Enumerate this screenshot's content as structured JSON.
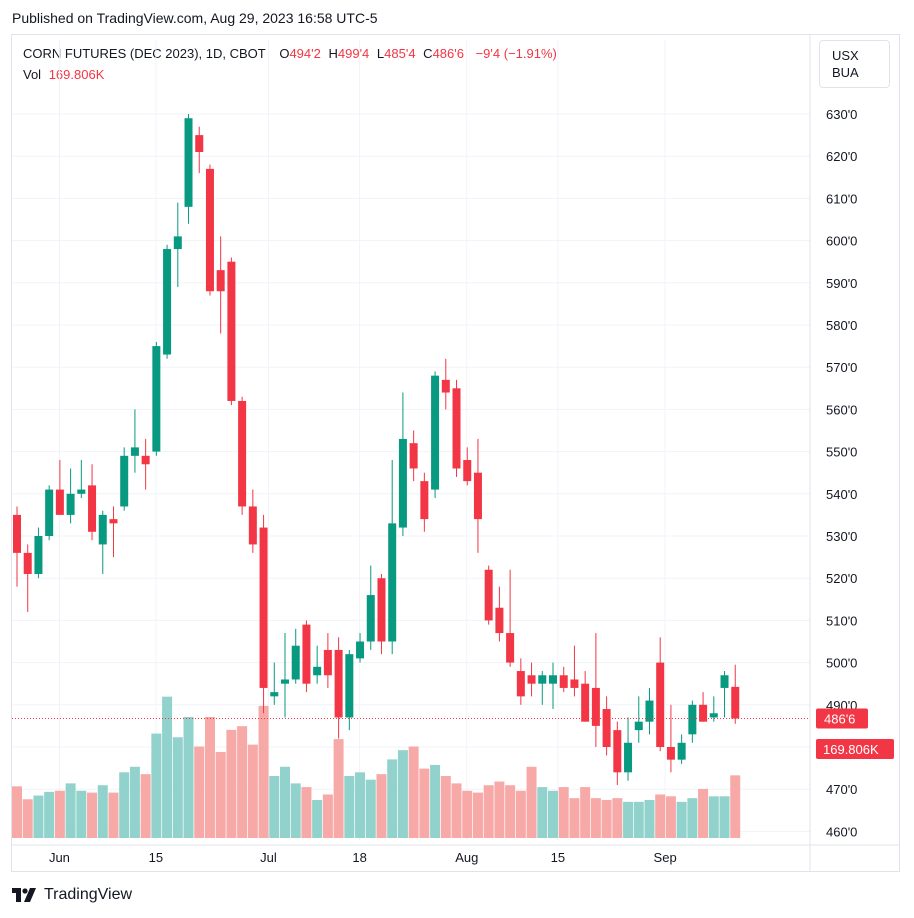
{
  "published": "Published on TradingView.com, Aug 29, 2023 16:58 UTC-5",
  "legend": {
    "symbol": "CORN FUTURES (DEC 2023), 1D, CBOT",
    "open_label": "O",
    "open": "494'2",
    "high_label": "H",
    "high": "499'4",
    "low_label": "L",
    "low": "485'4",
    "close_label": "C",
    "close": "486'6",
    "change": "−9'4 (−1.91%)",
    "vol_label": "Vol",
    "vol": "169.806K"
  },
  "units": [
    "USX",
    "BUA"
  ],
  "footer": "TradingView",
  "colors": {
    "up": "#089981",
    "down": "#f23645",
    "up_vol": "#92d2cc",
    "down_vol": "#f7a9a7",
    "grid": "#f0f3fa"
  },
  "chart_data": {
    "type": "candlestick",
    "title": "CORN FUTURES (DEC 2023), 1D, CBOT",
    "y_ticks": [
      "460'0",
      "470'0",
      "480'0",
      "490'0",
      "500'0",
      "510'0",
      "520'0",
      "530'0",
      "540'0",
      "550'0",
      "560'0",
      "570'0",
      "580'0",
      "590'0",
      "600'0",
      "610'0",
      "620'0",
      "630'0"
    ],
    "y_tick_values": [
      460,
      470,
      480,
      490,
      500,
      510,
      520,
      530,
      540,
      550,
      560,
      570,
      580,
      590,
      600,
      610,
      620,
      630
    ],
    "ylim": [
      456,
      636
    ],
    "x_labels": [
      {
        "label": "Jun",
        "index": 2
      },
      {
        "label": "15",
        "index": 11
      },
      {
        "label": "Jul",
        "index": 21.5
      },
      {
        "label": "18",
        "index": 30
      },
      {
        "label": "Aug",
        "index": 40
      },
      {
        "label": "15",
        "index": 48.5
      },
      {
        "label": "Sep",
        "index": 58.5
      }
    ],
    "last_price_label": "486'6",
    "last_price": 486.75,
    "last_volume_label": "169.806K",
    "last_volume": 169806,
    "volume_max": 420000,
    "candles": [
      {
        "d": "2023-05-31",
        "o": 535,
        "h": 537,
        "l": 518,
        "c": 526,
        "v": 140000
      },
      {
        "d": "2023-06-01",
        "o": 526,
        "h": 528,
        "l": 512,
        "c": 521,
        "v": 105000
      },
      {
        "d": "2023-06-02",
        "o": 521,
        "h": 532,
        "l": 520,
        "c": 530,
        "v": 115000
      },
      {
        "d": "2023-06-05",
        "o": 530,
        "h": 542,
        "l": 529,
        "c": 541,
        "v": 125000
      },
      {
        "d": "2023-06-06",
        "o": 541,
        "h": 548,
        "l": 536,
        "c": 535,
        "v": 128000
      },
      {
        "d": "2023-06-07",
        "o": 535,
        "h": 546,
        "l": 533,
        "c": 540,
        "v": 148000
      },
      {
        "d": "2023-06-08",
        "o": 540,
        "h": 548,
        "l": 539,
        "c": 541,
        "v": 128000
      },
      {
        "d": "2023-06-09",
        "o": 542,
        "h": 547,
        "l": 529,
        "c": 531,
        "v": 123000
      },
      {
        "d": "2023-06-12",
        "o": 528,
        "h": 536,
        "l": 521,
        "c": 535,
        "v": 143000
      },
      {
        "d": "2023-06-13",
        "o": 534,
        "h": 537,
        "l": 525,
        "c": 533,
        "v": 123000
      },
      {
        "d": "2023-06-14",
        "o": 537,
        "h": 551,
        "l": 536,
        "c": 549,
        "v": 178000
      },
      {
        "d": "2023-06-15",
        "o": 549,
        "h": 560,
        "l": 545,
        "c": 551,
        "v": 193000
      },
      {
        "d": "2023-06-16",
        "o": 549,
        "h": 553,
        "l": 541,
        "c": 547,
        "v": 173000
      },
      {
        "d": "2023-06-20",
        "o": 550,
        "h": 576,
        "l": 549,
        "c": 575,
        "v": 283000
      },
      {
        "d": "2023-06-21",
        "o": 573,
        "h": 599,
        "l": 572,
        "c": 598,
        "v": 383000
      },
      {
        "d": "2023-06-22",
        "o": 598,
        "h": 609,
        "l": 589,
        "c": 601,
        "v": 273000
      },
      {
        "d": "2023-06-23",
        "o": 608,
        "h": 630,
        "l": 604,
        "c": 629,
        "v": 328000
      },
      {
        "d": "2023-06-26",
        "o": 625,
        "h": 627,
        "l": 616,
        "c": 621,
        "v": 248000
      },
      {
        "d": "2023-06-27",
        "o": 617,
        "h": 618,
        "l": 587,
        "c": 588,
        "v": 328000
      },
      {
        "d": "2023-06-28",
        "o": 593,
        "h": 601,
        "l": 578,
        "c": 588,
        "v": 233000
      },
      {
        "d": "2023-06-29",
        "o": 595,
        "h": 596,
        "l": 561,
        "c": 562,
        "v": 293000
      },
      {
        "d": "2023-06-30",
        "o": 562,
        "h": 563,
        "l": 535,
        "c": 537,
        "v": 303000
      },
      {
        "d": "2023-07-03",
        "o": 537,
        "h": 541,
        "l": 526,
        "c": 528,
        "v": 253000
      },
      {
        "d": "2023-07-05",
        "o": 532,
        "h": 535,
        "l": 488,
        "c": 494,
        "v": 358000
      },
      {
        "d": "2023-07-06",
        "o": 492,
        "h": 500,
        "l": 490,
        "c": 493,
        "v": 168000
      },
      {
        "d": "2023-07-07",
        "o": 495,
        "h": 507,
        "l": 487,
        "c": 496,
        "v": 193000
      },
      {
        "d": "2023-07-10",
        "o": 496,
        "h": 508,
        "l": 495,
        "c": 504,
        "v": 148000
      },
      {
        "d": "2023-07-11",
        "o": 509,
        "h": 510,
        "l": 493,
        "c": 495,
        "v": 138000
      },
      {
        "d": "2023-07-12",
        "o": 497,
        "h": 504,
        "l": 495,
        "c": 499,
        "v": 103000
      },
      {
        "d": "2023-07-13",
        "o": 503,
        "h": 507,
        "l": 494,
        "c": 497,
        "v": 118000
      },
      {
        "d": "2023-07-14",
        "o": 503,
        "h": 506,
        "l": 482,
        "c": 487,
        "v": 268000
      },
      {
        "d": "2023-07-17",
        "o": 487,
        "h": 503,
        "l": 484,
        "c": 502,
        "v": 168000
      },
      {
        "d": "2023-07-18",
        "o": 501,
        "h": 507,
        "l": 500,
        "c": 505,
        "v": 178000
      },
      {
        "d": "2023-07-19",
        "o": 505,
        "h": 523,
        "l": 503,
        "c": 516,
        "v": 158000
      },
      {
        "d": "2023-07-20",
        "o": 520,
        "h": 521,
        "l": 502,
        "c": 505,
        "v": 173000
      },
      {
        "d": "2023-07-21",
        "o": 505,
        "h": 548,
        "l": 502,
        "c": 533,
        "v": 213000
      },
      {
        "d": "2023-07-24",
        "o": 532,
        "h": 564,
        "l": 530,
        "c": 553,
        "v": 238000
      },
      {
        "d": "2023-07-25",
        "o": 552,
        "h": 555,
        "l": 543,
        "c": 546,
        "v": 248000
      },
      {
        "d": "2023-07-26",
        "o": 543,
        "h": 545,
        "l": 531,
        "c": 534,
        "v": 188000
      },
      {
        "d": "2023-07-27",
        "o": 541,
        "h": 569,
        "l": 539,
        "c": 568,
        "v": 198000
      },
      {
        "d": "2023-07-28",
        "o": 567,
        "h": 572,
        "l": 560,
        "c": 564,
        "v": 168000
      },
      {
        "d": "2023-07-31",
        "o": 565,
        "h": 567,
        "l": 544,
        "c": 546,
        "v": 148000
      },
      {
        "d": "2023-08-01",
        "o": 548,
        "h": 551,
        "l": 542,
        "c": 543,
        "v": 128000
      },
      {
        "d": "2023-08-02",
        "o": 545,
        "h": 553,
        "l": 526,
        "c": 534,
        "v": 123000
      },
      {
        "d": "2023-08-03",
        "o": 522,
        "h": 523,
        "l": 509,
        "c": 510,
        "v": 143000
      },
      {
        "d": "2023-08-04",
        "o": 513,
        "h": 518,
        "l": 505,
        "c": 507,
        "v": 153000
      },
      {
        "d": "2023-08-07",
        "o": 507,
        "h": 522,
        "l": 499,
        "c": 500,
        "v": 143000
      },
      {
        "d": "2023-08-08",
        "o": 498,
        "h": 501,
        "l": 490,
        "c": 492,
        "v": 128000
      },
      {
        "d": "2023-08-09",
        "o": 497,
        "h": 500,
        "l": 492,
        "c": 495,
        "v": 193000
      },
      {
        "d": "2023-08-10",
        "o": 495,
        "h": 498,
        "l": 490,
        "c": 497,
        "v": 138000
      },
      {
        "d": "2023-08-11",
        "o": 495,
        "h": 500,
        "l": 489,
        "c": 497,
        "v": 128000
      },
      {
        "d": "2023-08-14",
        "o": 497,
        "h": 499,
        "l": 493,
        "c": 494,
        "v": 138000
      },
      {
        "d": "2023-08-15",
        "o": 496,
        "h": 504,
        "l": 492,
        "c": 494,
        "v": 108000
      },
      {
        "d": "2023-08-16",
        "o": 495,
        "h": 498,
        "l": 486,
        "c": 486,
        "v": 138000
      },
      {
        "d": "2023-08-17",
        "o": 494,
        "h": 507,
        "l": 480,
        "c": 485,
        "v": 108000
      },
      {
        "d": "2023-08-18",
        "o": 489,
        "h": 492,
        "l": 478,
        "c": 480,
        "v": 103000
      },
      {
        "d": "2023-08-21",
        "o": 484,
        "h": 486,
        "l": 471,
        "c": 474,
        "v": 108000
      },
      {
        "d": "2023-08-22",
        "o": 474,
        "h": 487,
        "l": 472,
        "c": 481,
        "v": 98000
      },
      {
        "d": "2023-08-23",
        "o": 484,
        "h": 492,
        "l": 481,
        "c": 486,
        "v": 98000
      },
      {
        "d": "2023-08-24",
        "o": 486,
        "h": 494,
        "l": 483,
        "c": 491,
        "v": 103000
      },
      {
        "d": "2023-08-25",
        "o": 500,
        "h": 506,
        "l": 479,
        "c": 480,
        "v": 118000
      },
      {
        "d": "2023-08-28",
        "o": 480,
        "h": 490,
        "l": 474,
        "c": 477,
        "v": 113000
      },
      {
        "d": "2023-08-29",
        "o": 477,
        "h": 483,
        "l": 476,
        "c": 481,
        "v": 98000
      },
      {
        "d": "2023-08-30",
        "o": 483,
        "h": 491,
        "l": 481,
        "c": 490,
        "v": 108000
      },
      {
        "d": "2023-08-31",
        "o": 490,
        "h": 493,
        "l": 486,
        "c": 486,
        "v": 133000
      },
      {
        "d": "2023-09-01",
        "o": 487,
        "h": 492,
        "l": 486,
        "c": 488,
        "v": 113000
      },
      {
        "d": "2023-09-04",
        "o": 494,
        "h": 498,
        "l": 487,
        "c": 497,
        "v": 113000
      },
      {
        "d": "2023-09-05",
        "o": 494.25,
        "h": 499.5,
        "l": 485.5,
        "c": 486.75,
        "v": 169806
      }
    ]
  }
}
